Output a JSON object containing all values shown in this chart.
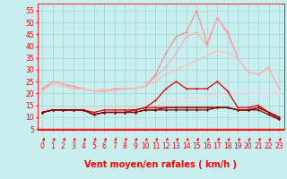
{
  "x": [
    0,
    1,
    2,
    3,
    4,
    5,
    6,
    7,
    8,
    9,
    10,
    11,
    12,
    13,
    14,
    15,
    16,
    17,
    18,
    19,
    20,
    21,
    22,
    23
  ],
  "series": [
    {
      "name": "rafales_highest",
      "color": "#ff8888",
      "linewidth": 0.8,
      "marker": "o",
      "markersize": 1.5,
      "values": [
        22,
        25,
        24,
        23,
        22,
        21,
        21,
        22,
        22,
        22,
        23,
        28,
        37,
        44,
        46,
        55,
        41,
        52,
        46,
        35,
        29,
        28,
        31,
        22
      ]
    },
    {
      "name": "rafales_mid",
      "color": "#ffaaaa",
      "linewidth": 0.8,
      "marker": "o",
      "markersize": 1.5,
      "values": [
        21,
        25,
        24,
        22,
        22,
        21,
        21,
        21,
        22,
        22,
        23,
        27,
        31,
        37,
        44,
        46,
        40,
        52,
        45,
        35,
        29,
        28,
        31,
        22
      ]
    },
    {
      "name": "line_upper",
      "color": "#ffbbbb",
      "linewidth": 0.8,
      "marker": "o",
      "markersize": 1.5,
      "values": [
        21,
        24,
        23,
        22,
        22,
        21,
        22,
        21,
        22,
        22,
        23,
        25,
        28,
        30,
        32,
        34,
        36,
        38,
        37,
        35,
        29,
        28,
        31,
        22
      ]
    },
    {
      "name": "line_mid",
      "color": "#ffcccc",
      "linewidth": 0.8,
      "marker": "o",
      "markersize": 1.5,
      "values": [
        13,
        14,
        14,
        14,
        14,
        14,
        14,
        14,
        14,
        14,
        15,
        15,
        16,
        17,
        18,
        18,
        19,
        20,
        20,
        20,
        20,
        20,
        20,
        20
      ]
    },
    {
      "name": "dark_main",
      "color": "#dd0000",
      "linewidth": 0.9,
      "marker": "o",
      "markersize": 1.5,
      "values": [
        12,
        13,
        13,
        13,
        13,
        12,
        13,
        13,
        13,
        13,
        14,
        17,
        22,
        25,
        22,
        22,
        22,
        25,
        21,
        14,
        14,
        15,
        12,
        9
      ]
    },
    {
      "name": "dark_low1",
      "color": "#bb0000",
      "linewidth": 0.9,
      "marker": "o",
      "markersize": 1.5,
      "values": [
        12,
        13,
        13,
        13,
        13,
        11,
        12,
        12,
        12,
        13,
        14,
        14,
        14,
        14,
        14,
        14,
        14,
        14,
        14,
        13,
        13,
        14,
        12,
        10
      ]
    },
    {
      "name": "dark_low2",
      "color": "#990000",
      "linewidth": 0.9,
      "marker": "o",
      "markersize": 1.5,
      "values": [
        12,
        13,
        13,
        13,
        13,
        11,
        12,
        12,
        12,
        12,
        13,
        13,
        14,
        14,
        14,
        14,
        14,
        14,
        14,
        13,
        13,
        14,
        12,
        10
      ]
    },
    {
      "name": "dark_low3",
      "color": "#770000",
      "linewidth": 0.9,
      "marker": "o",
      "markersize": 1.5,
      "values": [
        12,
        13,
        13,
        13,
        13,
        11,
        12,
        12,
        12,
        12,
        13,
        13,
        13,
        13,
        13,
        13,
        13,
        14,
        14,
        13,
        13,
        13,
        11,
        9
      ]
    }
  ],
  "xlabel": "Vent moyen/en rafales ( km/h )",
  "ylim": [
    5,
    58
  ],
  "yticks": [
    5,
    10,
    15,
    20,
    25,
    30,
    35,
    40,
    45,
    50,
    55
  ],
  "xlim": [
    -0.5,
    23.5
  ],
  "xticks": [
    0,
    1,
    2,
    3,
    4,
    5,
    6,
    7,
    8,
    9,
    10,
    11,
    12,
    13,
    14,
    15,
    16,
    17,
    18,
    19,
    20,
    21,
    22,
    23
  ],
  "bg_color": "#c8eef0",
  "grid_color": "#99cccc",
  "axis_fontsize": 6.5,
  "tick_fontsize": 5.5,
  "xlabel_fontsize": 7
}
